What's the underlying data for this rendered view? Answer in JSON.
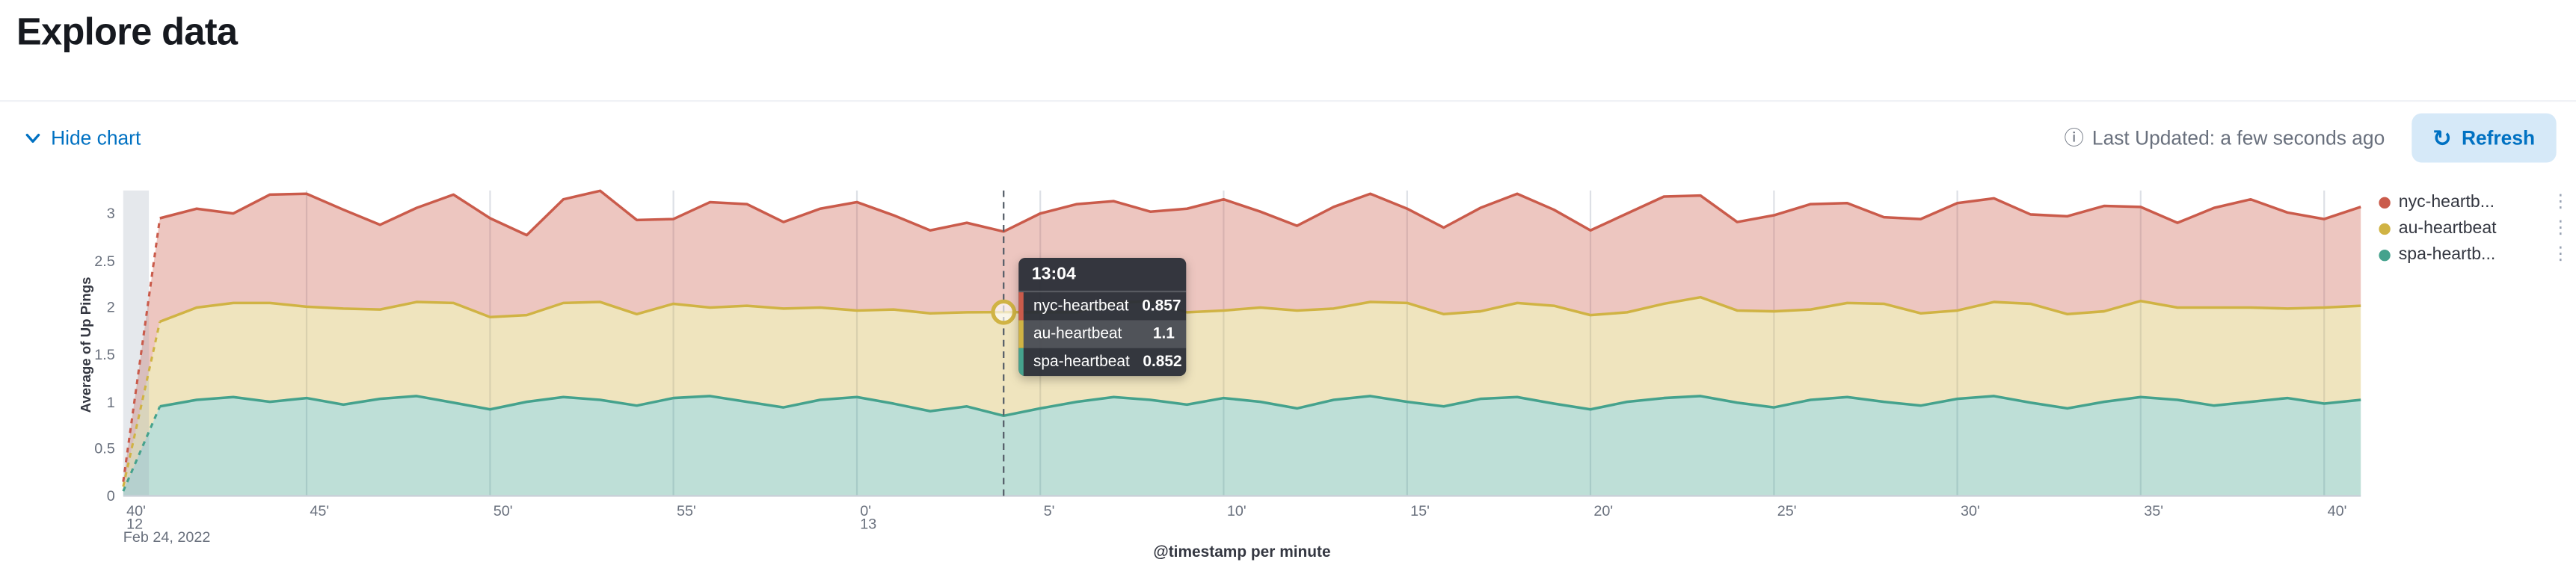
{
  "page": {
    "title": "Explore data"
  },
  "toolbar": {
    "hide_chart": "Hide chart",
    "last_updated": "Last Updated: a few seconds ago",
    "refresh": "Refresh"
  },
  "icons": {
    "hide_chart": "chevron-down",
    "last_updated": "info",
    "refresh": "refresh",
    "legend_menu": "vertical-dots"
  },
  "colors": {
    "primary": "#0071c2",
    "nyc": "#ca5b4b",
    "au": "#d0b344",
    "spa": "#45a28d",
    "nyc_fill": "rgba(202,91,75,0.35)",
    "au_fill": "rgba(208,179,68,0.35)",
    "spa_fill": "rgba(69,162,141,0.35)",
    "grid": "#dde0e6",
    "crosshair": "#535b66"
  },
  "legend": {
    "items": [
      {
        "label": "nyc-heartb...",
        "color_key": "nyc"
      },
      {
        "label": "au-heartbeat",
        "color_key": "au"
      },
      {
        "label": "spa-heartb...",
        "color_key": "spa"
      }
    ]
  },
  "tooltip": {
    "time": "13:04",
    "rows": [
      {
        "name": "nyc-heartbeat",
        "value": "0.857",
        "color_key": "nyc",
        "highlight": false
      },
      {
        "name": "au-heartbeat",
        "value": "1.1",
        "color_key": "au",
        "highlight": true
      },
      {
        "name": "spa-heartbeat",
        "value": "0.852",
        "color_key": "spa",
        "highlight": false
      }
    ]
  },
  "chart_data": {
    "type": "area",
    "stacked": true,
    "title": "",
    "xlabel": "@timestamp per minute",
    "ylabel": "Average of Up Pings",
    "x_start": "12:40",
    "x_end": "13:41",
    "x_date_label": "Feb 24, 2022",
    "minutes_total": 61,
    "x_tick_minutes": [
      0,
      5,
      10,
      15,
      20,
      25,
      30,
      35,
      40,
      45,
      50,
      55,
      60
    ],
    "x_tick_labels": [
      "40'",
      "45'",
      "50'",
      "55'",
      "0'",
      "5'",
      "10'",
      "15'",
      "20'",
      "25'",
      "30'",
      "35'",
      "40'"
    ],
    "x_secondary_labels": [
      {
        "text": "12",
        "minute": 0
      },
      {
        "text": "13",
        "minute": 20
      }
    ],
    "y_ticks": [
      0,
      0.5,
      1,
      1.5,
      2,
      2.5,
      3
    ],
    "ylim": [
      0,
      3.2
    ],
    "legend_position": "right",
    "grid": "vertical-only",
    "stack_order": [
      "spa-heartbeat",
      "au-heartbeat",
      "nyc-heartbeat"
    ],
    "hover": {
      "minute": 24,
      "time": "13:04",
      "stack_value": 1.952
    },
    "series": [
      {
        "name": "nyc-heartbeat",
        "values": [
          0.05,
          1.1,
          1.05,
          0.95,
          1.15,
          1.2,
          1.05,
          0.9,
          1.0,
          1.15,
          1.05,
          0.85,
          1.1,
          1.18,
          1.0,
          0.9,
          1.12,
          1.08,
          0.92,
          1.05,
          1.15,
          1.0,
          0.88,
          0.95,
          0.857,
          1.05,
          1.15,
          1.08,
          0.95,
          1.1,
          1.18,
          1.02,
          0.9,
          1.08,
          1.15,
          1.0,
          0.92,
          1.1,
          1.16,
          1.02,
          0.9,
          1.05,
          1.14,
          1.08,
          0.94,
          1.02,
          1.12,
          1.06,
          0.92,
          1.0,
          1.14,
          1.1,
          0.95,
          1.04,
          1.12,
          1.0,
          0.9,
          1.06,
          1.15,
          1.02,
          0.94,
          1.05
        ]
      },
      {
        "name": "au-heartbeat",
        "values": [
          0.05,
          0.9,
          0.98,
          1.0,
          1.05,
          0.97,
          1.02,
          0.95,
          1.0,
          1.06,
          0.98,
          0.92,
          1.0,
          1.04,
          0.97,
          1.0,
          0.94,
          1.02,
          1.05,
          0.98,
          0.92,
          1.0,
          1.04,
          1.0,
          1.1,
          1.02,
          0.95,
          1.0,
          1.05,
          0.98,
          0.93,
          1.0,
          1.04,
          0.97,
          1.0,
          1.05,
          0.98,
          0.93,
          1.0,
          1.04,
          1.0,
          0.95,
          1.0,
          1.05,
          0.98,
          1.02,
          0.96,
          1.0,
          1.04,
          0.98,
          0.94,
          1.0,
          1.05,
          1.0,
          0.96,
          1.02,
          0.98,
          1.04,
          1.0,
          0.95,
          1.02,
          1.0
        ]
      },
      {
        "name": "spa-heartbeat",
        "values": [
          0.05,
          0.95,
          1.02,
          1.05,
          1.0,
          1.04,
          0.97,
          1.03,
          1.06,
          0.99,
          0.92,
          1.0,
          1.05,
          1.02,
          0.96,
          1.04,
          1.06,
          1.0,
          0.94,
          1.02,
          1.05,
          0.98,
          0.9,
          0.95,
          0.852,
          0.93,
          1.0,
          1.05,
          1.02,
          0.97,
          1.04,
          1.0,
          0.93,
          1.02,
          1.06,
          1.0,
          0.95,
          1.03,
          1.05,
          0.98,
          0.92,
          1.0,
          1.04,
          1.06,
          0.99,
          0.94,
          1.02,
          1.05,
          1.0,
          0.96,
          1.03,
          1.06,
          0.99,
          0.93,
          1.0,
          1.05,
          1.02,
          0.96,
          1.0,
          1.04,
          0.98,
          1.02
        ]
      }
    ]
  }
}
